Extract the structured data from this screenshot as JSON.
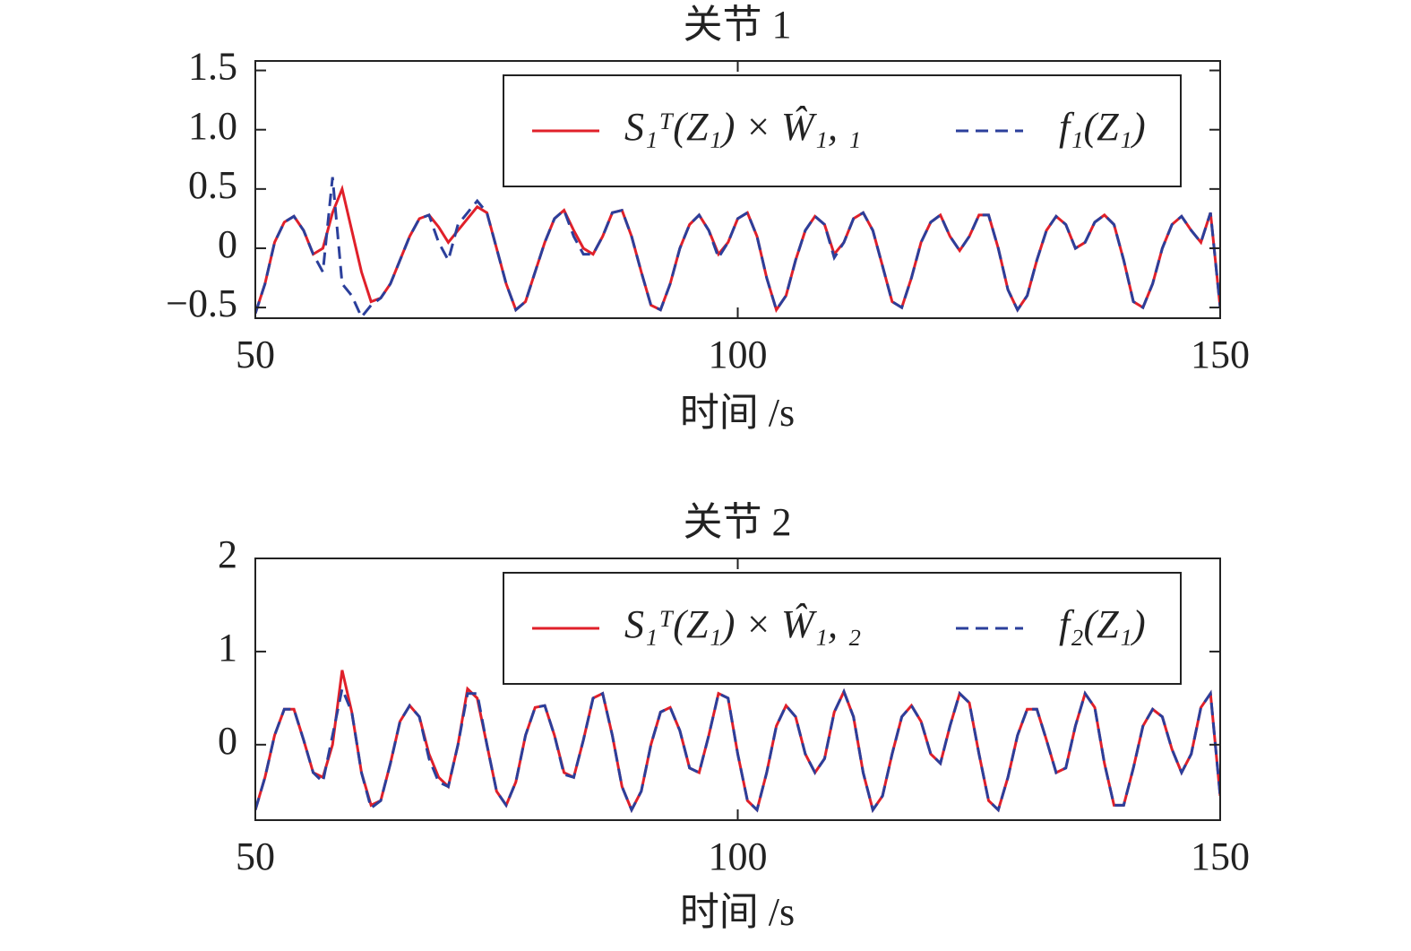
{
  "chart_data": [
    {
      "type": "line",
      "title": "关节 1",
      "xlabel": "时间 /s",
      "x": [
        50,
        51,
        52,
        53,
        54,
        55,
        56,
        57,
        58,
        59,
        60,
        61,
        62,
        63,
        64,
        65,
        66,
        67,
        68,
        69,
        70,
        71,
        72,
        73,
        74,
        75,
        76,
        77,
        78,
        79,
        80,
        81,
        82,
        83,
        84,
        85,
        86,
        87,
        88,
        89,
        90,
        91,
        92,
        93,
        94,
        95,
        96,
        97,
        98,
        99,
        100,
        101,
        102,
        103,
        104,
        105,
        106,
        107,
        108,
        109,
        110,
        111,
        112,
        113,
        114,
        115,
        116,
        117,
        118,
        119,
        120,
        121,
        122,
        123,
        124,
        125,
        126,
        127,
        128,
        129,
        130,
        131,
        132,
        133,
        134,
        135,
        136,
        137,
        138,
        139,
        140,
        141,
        142,
        143,
        144,
        145,
        146,
        147,
        148,
        149,
        150
      ],
      "series": [
        {
          "name": "S₁ᵀ(Z₁) × Ŵ₁, ₁",
          "color": "#e0202a",
          "dash": false,
          "values": [
            -0.55,
            -0.3,
            0.05,
            0.22,
            0.27,
            0.15,
            -0.05,
            0.0,
            0.3,
            0.5,
            0.15,
            -0.2,
            -0.45,
            -0.42,
            -0.3,
            -0.1,
            0.1,
            0.25,
            0.28,
            0.18,
            0.05,
            0.15,
            0.25,
            0.35,
            0.3,
            0.0,
            -0.3,
            -0.52,
            -0.45,
            -0.2,
            0.05,
            0.25,
            0.32,
            0.15,
            0.0,
            -0.05,
            0.1,
            0.3,
            0.32,
            0.1,
            -0.2,
            -0.48,
            -0.52,
            -0.3,
            0.0,
            0.2,
            0.28,
            0.15,
            -0.05,
            0.05,
            0.25,
            0.3,
            0.1,
            -0.25,
            -0.52,
            -0.4,
            -0.1,
            0.15,
            0.27,
            0.2,
            -0.05,
            0.05,
            0.25,
            0.3,
            0.15,
            -0.15,
            -0.45,
            -0.5,
            -0.25,
            0.05,
            0.22,
            0.28,
            0.1,
            -0.02,
            0.1,
            0.28,
            0.28,
            0.0,
            -0.35,
            -0.52,
            -0.4,
            -0.1,
            0.15,
            0.27,
            0.2,
            0.0,
            0.05,
            0.22,
            0.28,
            0.2,
            -0.1,
            -0.45,
            -0.5,
            -0.3,
            0.0,
            0.2,
            0.27,
            0.15,
            0.05,
            0.3,
            -0.5
          ]
        },
        {
          "name": "f₁(Z₁)",
          "color": "#2b3f9b",
          "dash": true,
          "values": [
            -0.55,
            -0.3,
            0.05,
            0.22,
            0.27,
            0.15,
            -0.05,
            -0.2,
            0.6,
            -0.3,
            -0.4,
            -0.58,
            -0.48,
            -0.42,
            -0.3,
            -0.1,
            0.1,
            0.25,
            0.28,
            0.05,
            -0.1,
            0.2,
            0.3,
            0.4,
            0.3,
            0.0,
            -0.3,
            -0.52,
            -0.45,
            -0.2,
            0.05,
            0.25,
            0.32,
            0.1,
            -0.05,
            -0.05,
            0.1,
            0.3,
            0.32,
            0.1,
            -0.2,
            -0.48,
            -0.52,
            -0.3,
            0.0,
            0.2,
            0.28,
            0.15,
            -0.08,
            0.05,
            0.25,
            0.3,
            0.1,
            -0.25,
            -0.52,
            -0.4,
            -0.1,
            0.15,
            0.27,
            0.2,
            -0.08,
            0.05,
            0.25,
            0.3,
            0.15,
            -0.15,
            -0.45,
            -0.5,
            -0.25,
            0.05,
            0.22,
            0.28,
            0.1,
            -0.02,
            0.1,
            0.28,
            0.28,
            0.0,
            -0.35,
            -0.52,
            -0.4,
            -0.1,
            0.15,
            0.27,
            0.2,
            0.0,
            0.05,
            0.22,
            0.28,
            0.2,
            -0.1,
            -0.45,
            -0.5,
            -0.3,
            0.0,
            0.2,
            0.27,
            0.15,
            0.05,
            0.3,
            -0.5
          ]
        }
      ],
      "xlim": [
        50,
        150
      ],
      "xticks": [
        50,
        100,
        150
      ],
      "ylim": [
        -0.59,
        1.58
      ],
      "yticks": [
        {
          "value": -0.5,
          "label": "−0.5"
        },
        0,
        0.5,
        {
          "value": 1,
          "label": "1.0"
        },
        1.5
      ]
    },
    {
      "type": "line",
      "title": "关节 2",
      "xlabel": "时间 /s",
      "x": [
        50,
        51,
        52,
        53,
        54,
        55,
        56,
        57,
        58,
        59,
        60,
        61,
        62,
        63,
        64,
        65,
        66,
        67,
        68,
        69,
        70,
        71,
        72,
        73,
        74,
        75,
        76,
        77,
        78,
        79,
        80,
        81,
        82,
        83,
        84,
        85,
        86,
        87,
        88,
        89,
        90,
        91,
        92,
        93,
        94,
        95,
        96,
        97,
        98,
        99,
        100,
        101,
        102,
        103,
        104,
        105,
        106,
        107,
        108,
        109,
        110,
        111,
        112,
        113,
        114,
        115,
        116,
        117,
        118,
        119,
        120,
        121,
        122,
        123,
        124,
        125,
        126,
        127,
        128,
        129,
        130,
        131,
        132,
        133,
        134,
        135,
        136,
        137,
        138,
        139,
        140,
        141,
        142,
        143,
        144,
        145,
        146,
        147,
        148,
        149,
        150
      ],
      "series": [
        {
          "name": "S₁ᵀ(Z₁) × Ŵ₁, ₂",
          "color": "#e0202a",
          "dash": false,
          "values": [
            -0.7,
            -0.35,
            0.1,
            0.38,
            0.38,
            0.05,
            -0.3,
            -0.35,
            0.0,
            0.8,
            0.35,
            -0.3,
            -0.65,
            -0.6,
            -0.2,
            0.25,
            0.42,
            0.3,
            -0.1,
            -0.35,
            -0.45,
            0.0,
            0.6,
            0.5,
            0.0,
            -0.5,
            -0.65,
            -0.4,
            0.1,
            0.4,
            0.42,
            0.1,
            -0.3,
            -0.35,
            0.05,
            0.5,
            0.55,
            0.1,
            -0.45,
            -0.7,
            -0.5,
            0.0,
            0.35,
            0.4,
            0.15,
            -0.25,
            -0.3,
            0.1,
            0.55,
            0.5,
            -0.1,
            -0.6,
            -0.7,
            -0.3,
            0.2,
            0.42,
            0.3,
            -0.1,
            -0.3,
            -0.15,
            0.35,
            0.57,
            0.3,
            -0.3,
            -0.7,
            -0.55,
            -0.1,
            0.3,
            0.42,
            0.25,
            -0.1,
            -0.2,
            0.2,
            0.55,
            0.45,
            -0.1,
            -0.6,
            -0.7,
            -0.35,
            0.1,
            0.38,
            0.38,
            0.05,
            -0.3,
            -0.25,
            0.2,
            0.55,
            0.4,
            -0.2,
            -0.65,
            -0.65,
            -0.25,
            0.2,
            0.38,
            0.3,
            -0.05,
            -0.3,
            -0.1,
            0.4,
            0.55,
            -0.55
          ]
        },
        {
          "name": "f₂(Z₁)",
          "color": "#2b3f9b",
          "dash": true,
          "values": [
            -0.7,
            -0.35,
            0.1,
            0.38,
            0.38,
            0.05,
            -0.3,
            -0.4,
            0.1,
            0.6,
            0.35,
            -0.3,
            -0.68,
            -0.6,
            -0.2,
            0.25,
            0.42,
            0.3,
            -0.15,
            -0.4,
            -0.45,
            0.0,
            0.55,
            0.55,
            0.0,
            -0.5,
            -0.65,
            -0.4,
            0.1,
            0.4,
            0.42,
            0.1,
            -0.32,
            -0.35,
            0.05,
            0.5,
            0.55,
            0.1,
            -0.45,
            -0.7,
            -0.5,
            0.0,
            0.35,
            0.4,
            0.15,
            -0.25,
            -0.3,
            0.1,
            0.55,
            0.5,
            -0.1,
            -0.6,
            -0.7,
            -0.3,
            0.2,
            0.42,
            0.3,
            -0.1,
            -0.3,
            -0.15,
            0.35,
            0.57,
            0.3,
            -0.3,
            -0.7,
            -0.55,
            -0.1,
            0.3,
            0.42,
            0.25,
            -0.1,
            -0.2,
            0.2,
            0.55,
            0.45,
            -0.1,
            -0.6,
            -0.7,
            -0.35,
            0.1,
            0.38,
            0.38,
            0.05,
            -0.3,
            -0.25,
            0.2,
            0.55,
            0.4,
            -0.2,
            -0.65,
            -0.65,
            -0.25,
            0.2,
            0.38,
            0.3,
            -0.05,
            -0.3,
            -0.1,
            0.4,
            0.55,
            -0.55
          ]
        }
      ],
      "xlim": [
        50,
        150
      ],
      "xticks": [
        50,
        100,
        150
      ],
      "ylim": [
        -0.81,
        2
      ],
      "yticks": [
        0,
        1,
        2
      ]
    }
  ]
}
